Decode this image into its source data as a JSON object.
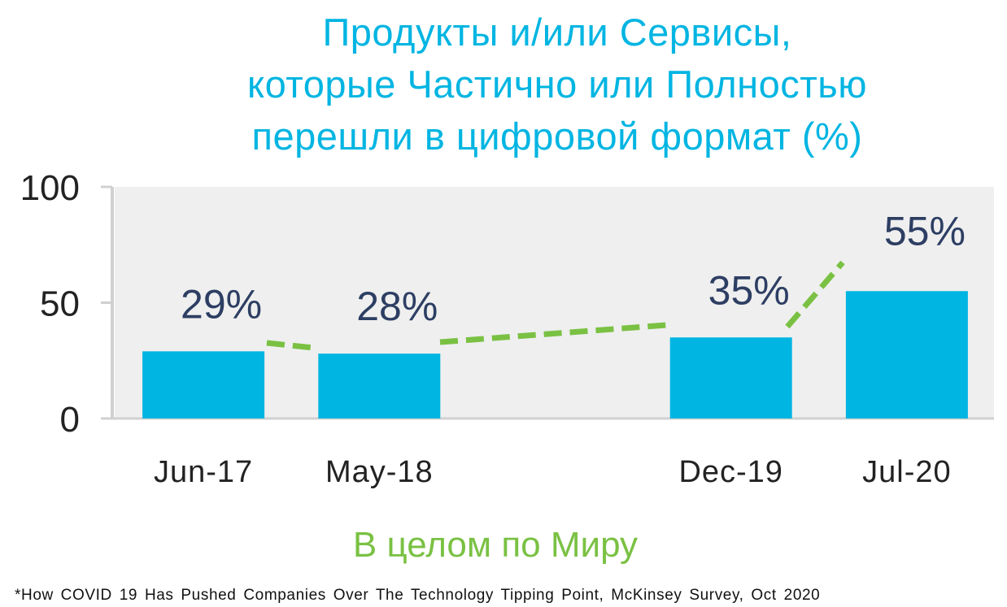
{
  "chart_data": {
    "type": "bar",
    "title_lines": [
      "Продукты и/или Сервисы,",
      "которые Частично или Полностью",
      "перешли в цифровой формат (%)"
    ],
    "categories": [
      "Jun-17",
      "May-18",
      "",
      "Dec-19",
      "Jul-20"
    ],
    "values": [
      29,
      28,
      null,
      35,
      55
    ],
    "data_labels": [
      "29%",
      "28%",
      "",
      "35%",
      "55%"
    ],
    "ylim": [
      0,
      100
    ],
    "yticks": [
      0,
      50,
      100
    ],
    "xlabel": "В целом по Миру",
    "ylabel": "",
    "grid": false,
    "colors": {
      "bar": "#00b5e2",
      "trend": "#7ac143",
      "plot_bg": "#efefef",
      "label": "#2d3e63",
      "title": "#00b5e2"
    }
  },
  "footnote": "*How COVID 19 Has Pushed Companies  Over The Technology  Tipping Point, McKinsey  Survey, Oct 2020"
}
